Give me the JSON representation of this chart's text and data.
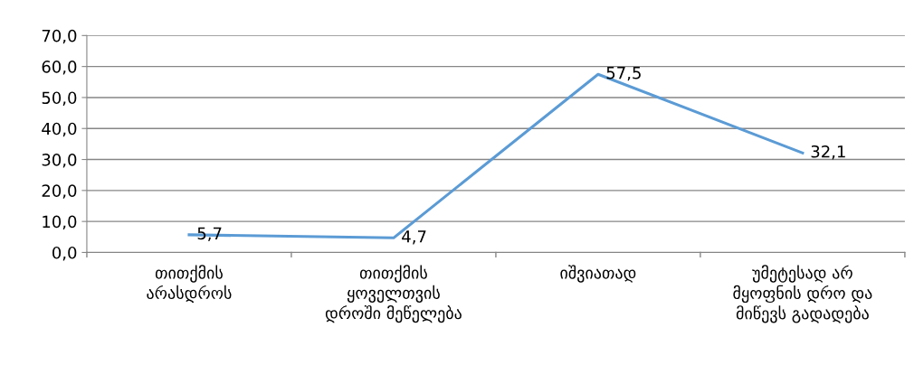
{
  "chart_data": {
    "type": "line",
    "categories": [
      "თითქმის\nარასდროს",
      "თითქმის\nყოველთვის\nდროში მეწელება",
      "იშვიათად",
      "უმეტესად არ\nმყოფნის დრო და\nმიწევს გადადება"
    ],
    "series": [
      {
        "color": "#5b9bd5",
        "values": [
          5.7,
          4.7,
          57.5,
          32.1
        ],
        "value_labels": [
          "5,7",
          "4,7",
          "57,5",
          "32,1"
        ]
      }
    ],
    "ylim": [
      0,
      70
    ],
    "yticks": [
      {
        "value": 0,
        "label": "0,0"
      },
      {
        "value": 10,
        "label": "10,0"
      },
      {
        "value": 20,
        "label": "20,0"
      },
      {
        "value": 30,
        "label": "30,0"
      },
      {
        "value": 40,
        "label": "40,0"
      },
      {
        "value": 50,
        "label": "50,0"
      },
      {
        "value": 60,
        "label": "60,0"
      },
      {
        "value": 70,
        "label": "70,0"
      }
    ],
    "grid": "y",
    "marker": "none",
    "line_style": "solid",
    "legend": false
  }
}
